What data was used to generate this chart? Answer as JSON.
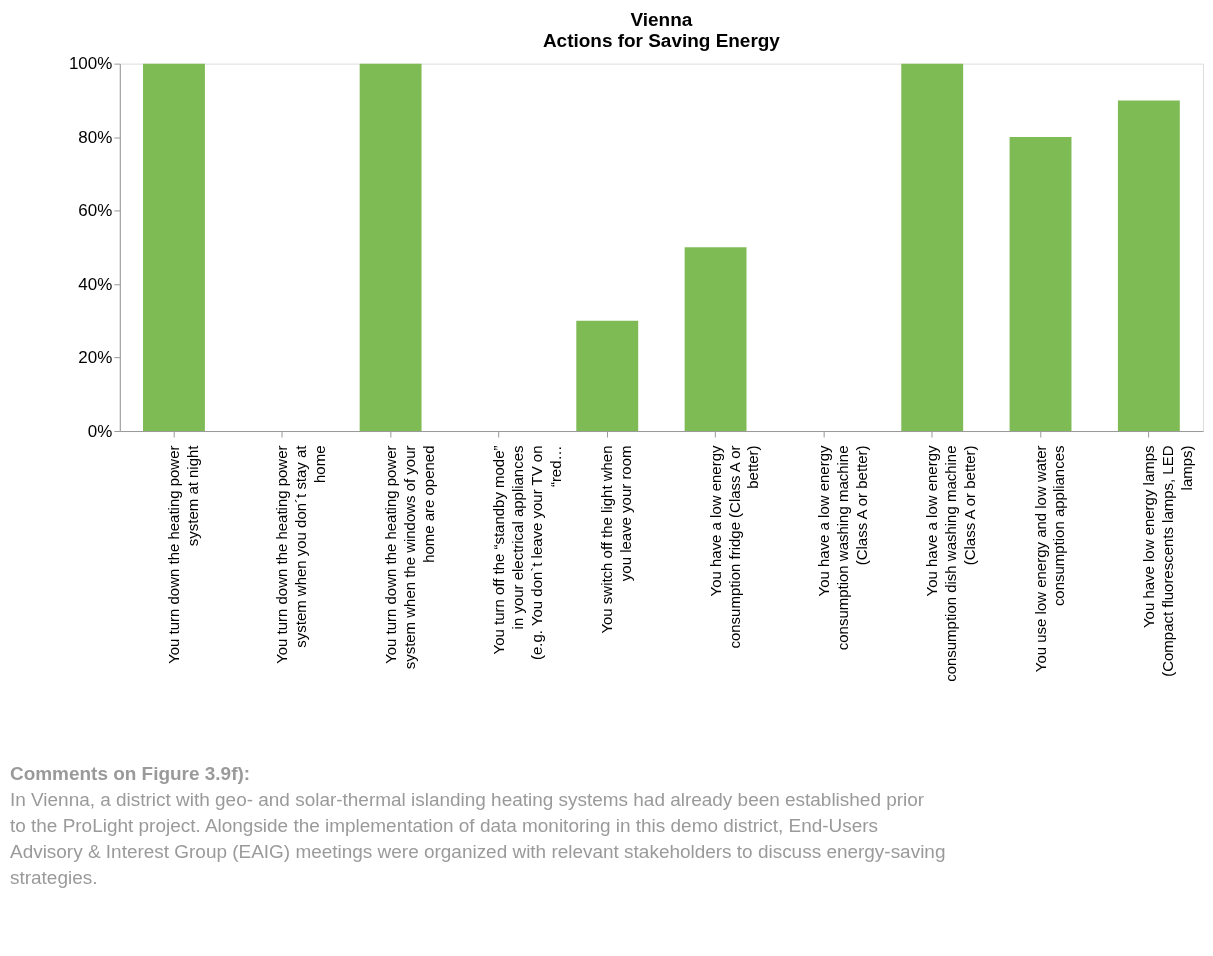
{
  "chart_data": {
    "type": "bar",
    "title": "Vienna",
    "subtitle": "Actions for Saving Energy",
    "categories": [
      "You turn down the heating power system at night",
      "You turn down the heating power system when you don´t stay at home",
      "You turn down the heating power system when the windows of your home are opened",
      "You turn off the “standby mode” in your electrical appliances (e.g. You don`t leave your TV on “red…",
      "You switch off the light when you leave your room",
      "You have a low energy consumption fridge (Class A or better)",
      "You have a low energy consumption washing machine (Class A or better)",
      "You have a low energy consumption dish washing machine (Class A or better)",
      "You use low energy and low water consumption appliances",
      "You have low energy lamps (Compact fluorescents lamps, LED lamps)"
    ],
    "values": [
      100,
      0,
      100,
      0,
      30,
      50,
      0,
      100,
      80,
      90
    ],
    "color": "#7fbb55",
    "ylim": [
      0,
      100
    ],
    "yticks": [
      {
        "value": 0,
        "label": "0%"
      },
      {
        "value": 20,
        "label": "20%"
      },
      {
        "value": 40,
        "label": "40%"
      },
      {
        "value": 60,
        "label": "60%"
      },
      {
        "value": 80,
        "label": "80%"
      },
      {
        "value": 100,
        "label": "100%"
      }
    ],
    "grid": false,
    "annotations": [
      "Comments on Figure 3.9f):",
      "In Vienna, a district with geo- and solar-thermal islanding heating systems had already been established prior to the ProLight project. Alongside the implementation of data monitoring in this demo district, End-Users Advisory & Interest Group (EAIG) meetings were organized with relevant stakeholders to discuss energy-saving strategies."
    ]
  }
}
